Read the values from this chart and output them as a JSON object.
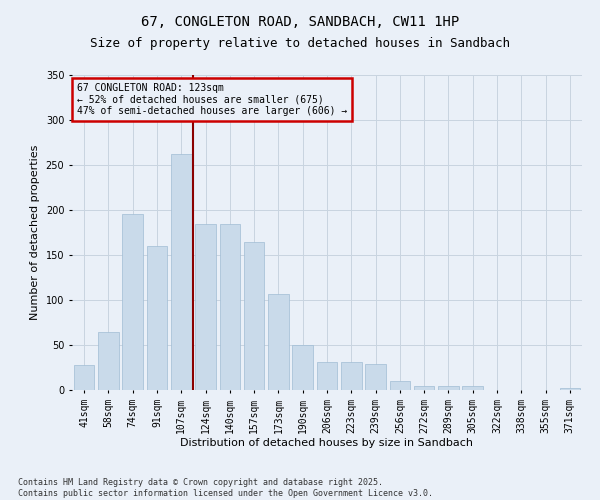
{
  "title": "67, CONGLETON ROAD, SANDBACH, CW11 1HP",
  "subtitle": "Size of property relative to detached houses in Sandbach",
  "xlabel": "Distribution of detached houses by size in Sandbach",
  "ylabel": "Number of detached properties",
  "categories": [
    "41sqm",
    "58sqm",
    "74sqm",
    "91sqm",
    "107sqm",
    "124sqm",
    "140sqm",
    "157sqm",
    "173sqm",
    "190sqm",
    "206sqm",
    "223sqm",
    "239sqm",
    "256sqm",
    "272sqm",
    "289sqm",
    "305sqm",
    "322sqm",
    "338sqm",
    "355sqm",
    "371sqm"
  ],
  "values": [
    28,
    65,
    196,
    160,
    262,
    185,
    185,
    165,
    107,
    50,
    31,
    31,
    29,
    10,
    4,
    4,
    5,
    0,
    0,
    0,
    2
  ],
  "bar_color": "#c9daea",
  "bar_edgecolor": "#a0bcd4",
  "bar_linewidth": 0.5,
  "grid_color": "#c8d4e0",
  "bg_color": "#eaf0f8",
  "property_line_color": "#8b0000",
  "annotation_text": "67 CONGLETON ROAD: 123sqm\n← 52% of detached houses are smaller (675)\n47% of semi-detached houses are larger (606) →",
  "annotation_box_color": "#cc0000",
  "ylim": [
    0,
    350
  ],
  "yticks": [
    0,
    50,
    100,
    150,
    200,
    250,
    300,
    350
  ],
  "footnote": "Contains HM Land Registry data © Crown copyright and database right 2025.\nContains public sector information licensed under the Open Government Licence v3.0.",
  "title_fontsize": 10,
  "subtitle_fontsize": 9,
  "label_fontsize": 8,
  "tick_fontsize": 7,
  "annot_fontsize": 7,
  "footnote_fontsize": 6
}
